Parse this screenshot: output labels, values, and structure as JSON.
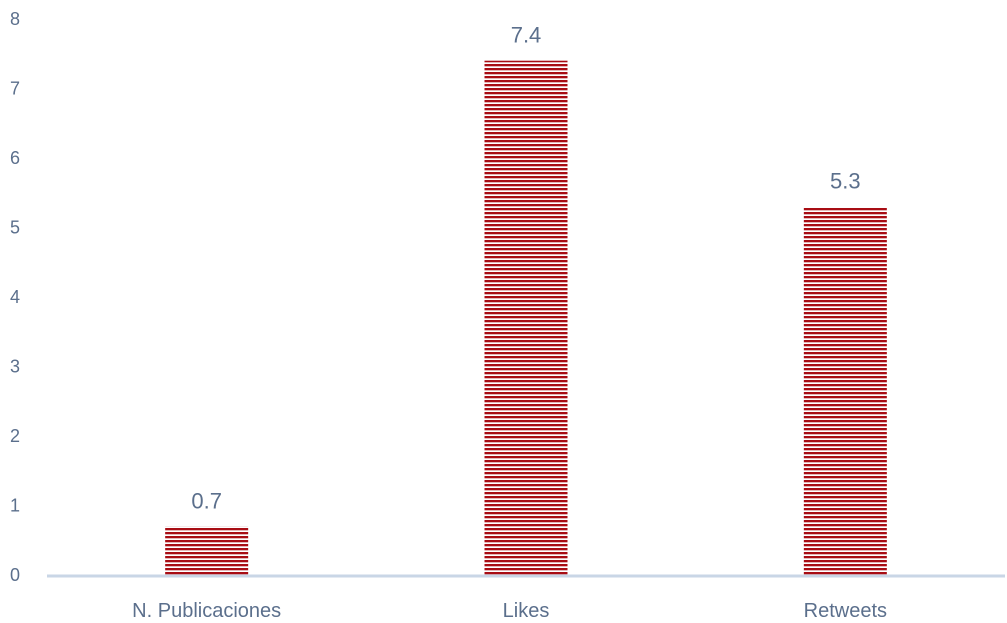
{
  "chart_data": {
    "type": "bar",
    "title": "",
    "xlabel": "",
    "ylabel": "",
    "categories": [
      "N. Publicaciones",
      "Likes",
      "Retweets"
    ],
    "values": [
      0.7,
      7.4,
      5.3
    ],
    "data_labels": [
      "0.7",
      "7.4",
      "5.3"
    ],
    "ylim": [
      0,
      8
    ],
    "y_ticks": [
      "0",
      "1",
      "2",
      "3",
      "4",
      "5",
      "6",
      "7",
      "8"
    ],
    "grid": false,
    "legend": "none",
    "bar_fill": "horizontal-stripes",
    "colors": {
      "bar_stripe": "#a80d14",
      "bar_gap": "#ffffff",
      "axis_line": "#c9d6e6",
      "text": "#5b6f8c"
    }
  }
}
